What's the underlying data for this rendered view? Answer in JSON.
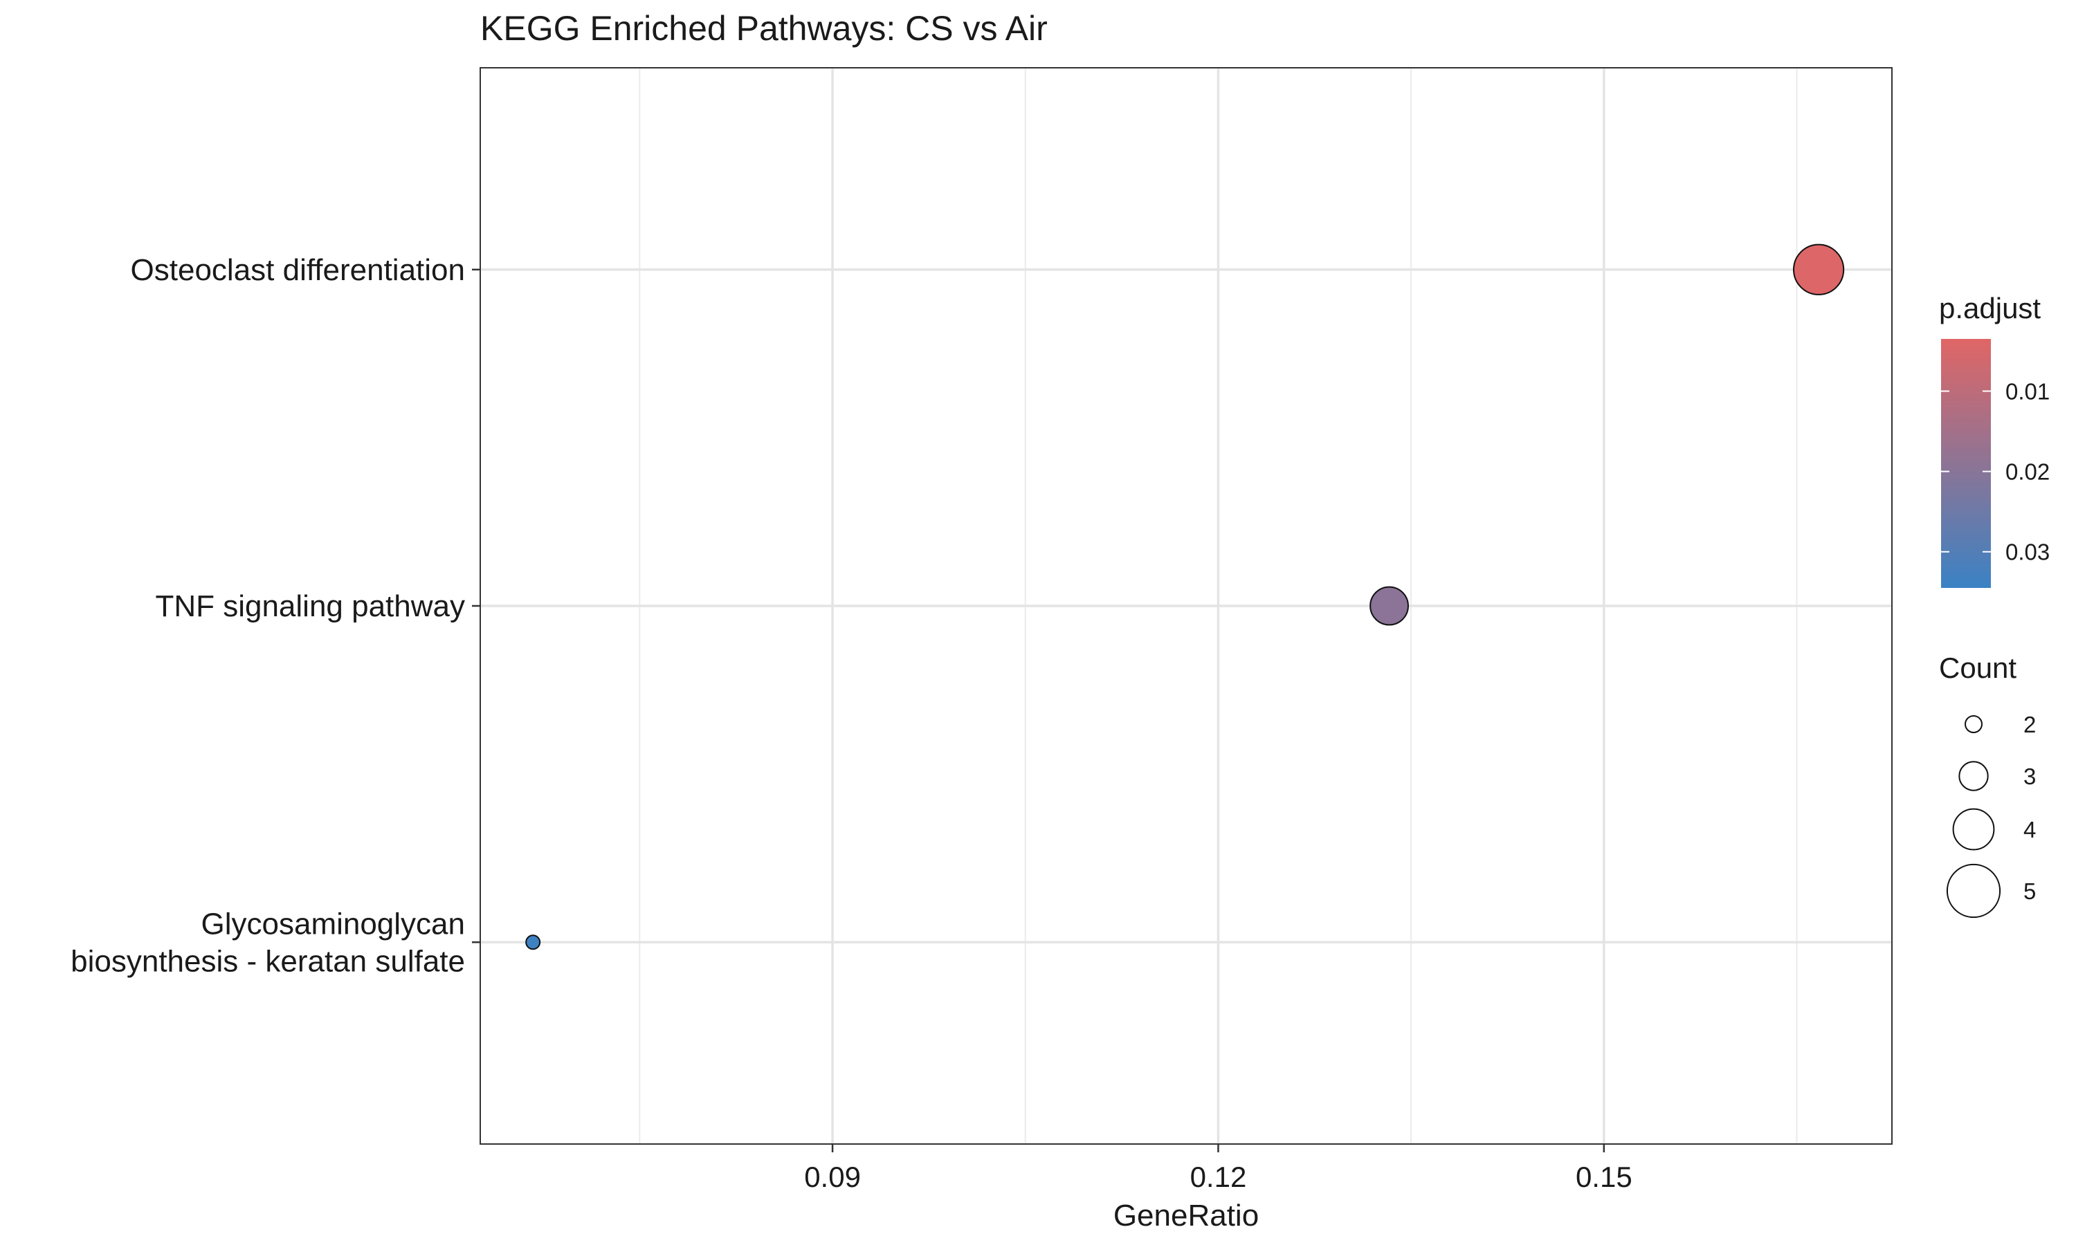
{
  "chart_data": {
    "type": "scatter",
    "title": "KEGG Enriched Pathways: CS vs Air",
    "xlabel": "GeneRatio",
    "ylabel": "",
    "xlim": [
      0.0626,
      0.1724
    ],
    "x_ticks": [
      0.09,
      0.12,
      0.15
    ],
    "x_tick_labels": [
      "0.09",
      "0.12",
      "0.15"
    ],
    "categories": [
      "Osteoclast differentiation",
      "TNF signaling pathway",
      "Glycosaminoglycan biosynthesis - keratan sulfate"
    ],
    "category_label_lines": [
      [
        "Osteoclast differentiation"
      ],
      [
        "TNF signaling pathway"
      ],
      [
        "Glycosaminoglycan",
        "biosynthesis - keratan sulfate"
      ]
    ],
    "points": [
      {
        "pathway": "Osteoclast differentiation",
        "gene_ratio": 0.1667,
        "count": 5,
        "p_adjust": 0.004
      },
      {
        "pathway": "TNF signaling pathway",
        "gene_ratio": 0.1333,
        "count": 4,
        "p_adjust": 0.0195
      },
      {
        "pathway": "Glycosaminoglycan biosynthesis - keratan sulfate",
        "gene_ratio": 0.0667,
        "count": 2,
        "p_adjust": 0.034
      }
    ],
    "grid": true,
    "legend_position": "right",
    "color_legend": {
      "title": "p.adjust",
      "range": [
        0.0035,
        0.0345
      ],
      "low_color": "#e06666",
      "high_color": "#3b82c4",
      "ticks": [
        0.01,
        0.02,
        0.03
      ],
      "tick_labels": [
        "0.01",
        "0.02",
        "0.03"
      ]
    },
    "size_legend": {
      "title": "Count",
      "values": [
        2,
        3,
        4,
        5
      ],
      "labels": [
        "2",
        "3",
        "4",
        "5"
      ]
    }
  }
}
